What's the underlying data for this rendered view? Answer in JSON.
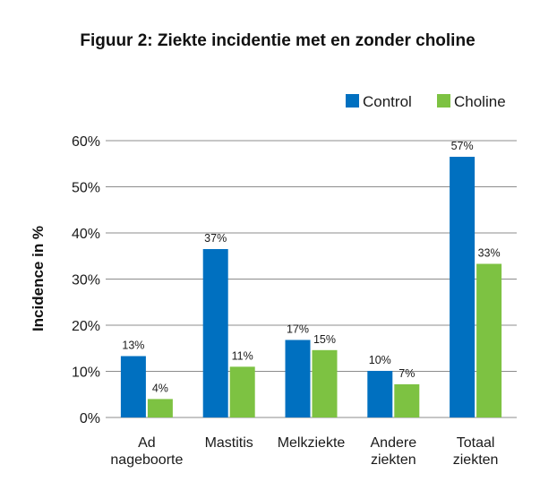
{
  "chart_data": {
    "type": "bar",
    "title": "Figuur 2: Ziekte incidentie met en zonder choline",
    "xlabel": "",
    "ylabel": "Incidence in %",
    "ylim": [
      0,
      60
    ],
    "yticks": [
      0,
      10,
      20,
      30,
      40,
      50,
      60
    ],
    "ytick_labels": [
      "0%",
      "10%",
      "20%",
      "30%",
      "40%",
      "50%",
      "60%"
    ],
    "grid": true,
    "legend_position": "top-right",
    "categories": [
      [
        "Ad",
        "nageboorte"
      ],
      [
        "Mastitis"
      ],
      [
        "Melkziekte"
      ],
      [
        "Andere",
        "ziekten"
      ],
      [
        "Totaal",
        "ziekten"
      ]
    ],
    "series": [
      {
        "name": "Control",
        "color": "#0070c0",
        "values": [
          13.3,
          36.5,
          16.8,
          10.1,
          56.5
        ],
        "labels": [
          "13%",
          "37%",
          "17%",
          "10%",
          "57%"
        ]
      },
      {
        "name": "Choline",
        "color": "#7dc242",
        "values": [
          4.0,
          11.0,
          14.6,
          7.2,
          33.3
        ],
        "labels": [
          "4%",
          "11%",
          "15%",
          "7%",
          "33%"
        ]
      }
    ]
  }
}
